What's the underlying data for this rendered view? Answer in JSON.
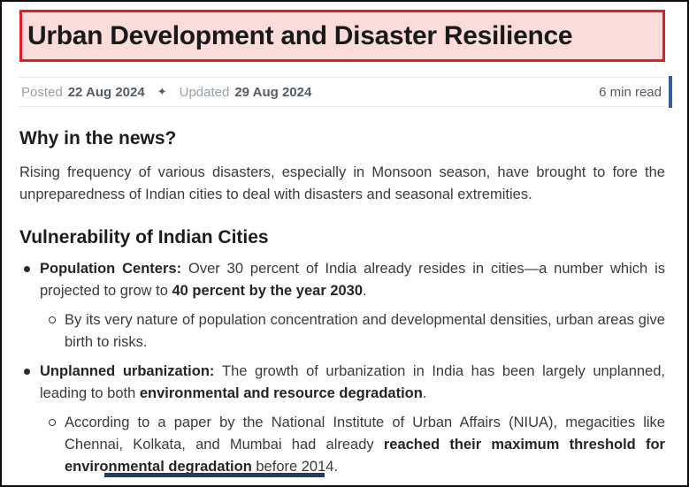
{
  "title_banner": {
    "text": "Urban Development and Disaster Resilience"
  },
  "meta_bar": {
    "posted_label": "Posted",
    "posted_date": "22 Aug 2024",
    "separator_icon": "✦",
    "updated_label": "Updated",
    "updated_date": "29 Aug 2024",
    "read_time": "6 min read"
  },
  "colors": {
    "banner_bg": "#fadcdb",
    "banner_border": "#e02020",
    "accent_bar_blue": "#2e5ca6",
    "cutoff_bar_navy": "#1e3a68",
    "meta_gray": "#99a0a8",
    "meta_dark": "#555b63",
    "body_text": "#3a3a3a",
    "heading_text": "#1c1c1c",
    "divider": "#e9e9e9"
  },
  "sections": {
    "news": {
      "heading": "Why in the news?",
      "paragraph": "Rising frequency of various disasters, especially in Monsoon season, have brought to fore the unpreparedness of Indian cities to deal with disasters and seasonal extremities."
    },
    "vulnerability": {
      "heading": "Vulnerability of Indian Cities",
      "items": [
        {
          "level": 1,
          "segments": [
            {
              "text": "Population Centers: ",
              "bold": true
            },
            {
              "text": "Over 30 percent of India already resides in cities—a number which is projected to grow to ",
              "bold": false
            },
            {
              "text": "40 percent by the year 2030",
              "bold": true
            },
            {
              "text": ".",
              "bold": false
            }
          ]
        },
        {
          "level": 2,
          "segments": [
            {
              "text": "By its very nature of population concentration and developmental densities, urban areas give birth to risks.",
              "bold": false
            }
          ]
        },
        {
          "level": 1,
          "segments": [
            {
              "text": "Unplanned urbanization: ",
              "bold": true
            },
            {
              "text": "The growth of urbanization in India has been largely unplanned, leading to both ",
              "bold": false
            },
            {
              "text": "environmental and resource degradation",
              "bold": true
            },
            {
              "text": ".",
              "bold": false
            }
          ]
        },
        {
          "level": 2,
          "segments": [
            {
              "text": "According to a paper by the National Institute of Urban Affairs (NIUA), megacities like Chennai, Kolkata, and Mumbai had already ",
              "bold": false
            },
            {
              "text": "reached their maximum threshold for environmental degradation",
              "bold": true
            },
            {
              "text": " before 2014.",
              "bold": false
            }
          ]
        }
      ]
    }
  }
}
